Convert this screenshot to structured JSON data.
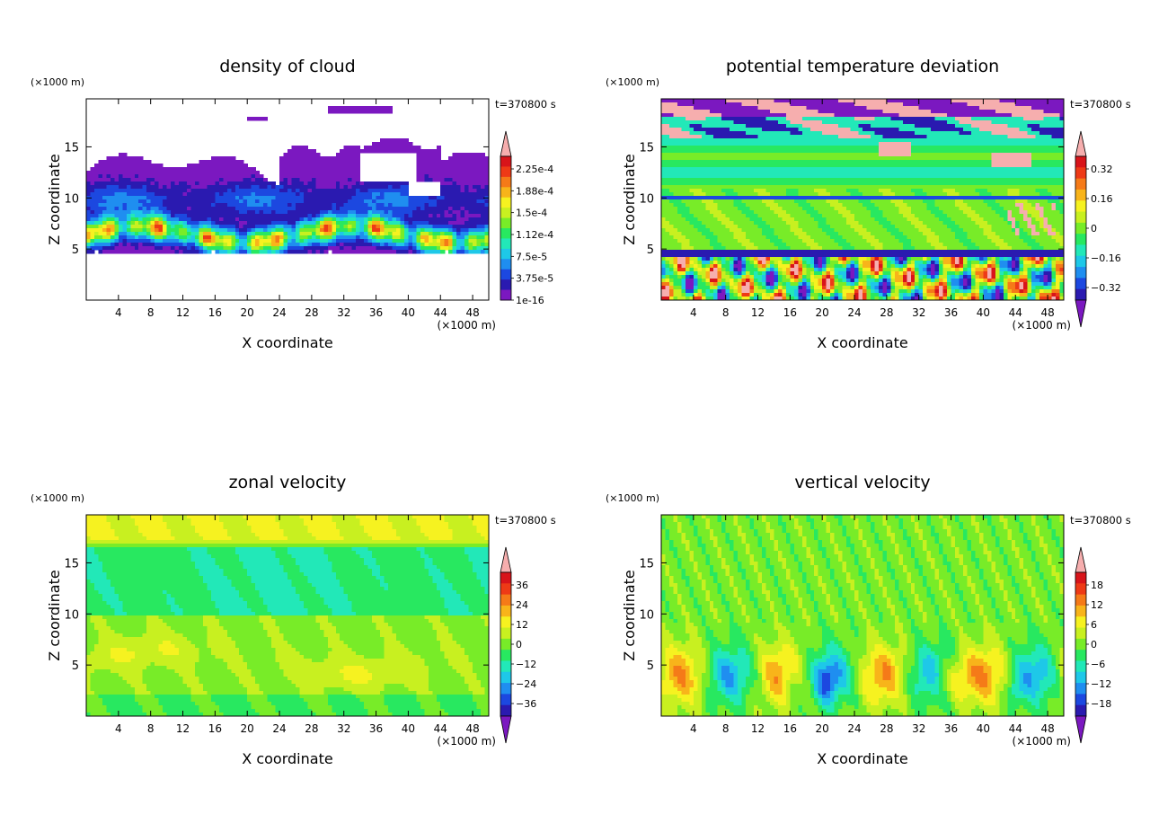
{
  "chart_data": [
    {
      "type": "heatmap",
      "title": "density of cloud",
      "xlabel": "X coordinate",
      "ylabel": "Z coordinate",
      "x_unit": "(×1000 m)",
      "y_unit": "(×1000 m)",
      "time_label": "t=370800 s",
      "xlim": [
        0,
        50
      ],
      "ylim": [
        0,
        19.7
      ],
      "xticks": [
        "4",
        "8",
        "12",
        "16",
        "20",
        "24",
        "28",
        "32",
        "36",
        "40",
        "44",
        "48"
      ],
      "yticks": [
        "5",
        "10",
        "15"
      ],
      "colorbar_labels": [
        "2.25e-4",
        "1.88e-4",
        "1.5e-4",
        "1.12e-4",
        "7.5e-5",
        "3.75e-5",
        "1e-16"
      ],
      "colorbar_has_lower_extension": false,
      "field": "cloud"
    },
    {
      "type": "heatmap",
      "title": "potential temperature deviation",
      "xlabel": "X coordinate",
      "ylabel": "Z coordinate",
      "x_unit": "(×1000 m)",
      "y_unit": "(×1000 m)",
      "time_label": "t=370800 s",
      "xlim": [
        0,
        50
      ],
      "ylim": [
        0,
        19.7
      ],
      "xticks": [
        "4",
        "8",
        "12",
        "16",
        "20",
        "24",
        "28",
        "32",
        "36",
        "40",
        "44",
        "48"
      ],
      "yticks": [
        "5",
        "10",
        "15"
      ],
      "colorbar_labels": [
        "0.32",
        "0.16",
        "0",
        "−0.16",
        "−0.32"
      ],
      "colorbar_has_lower_extension": true,
      "field": "theta"
    },
    {
      "type": "heatmap",
      "title": "zonal velocity",
      "xlabel": "X coordinate",
      "ylabel": "Z coordinate",
      "x_unit": "(×1000 m)",
      "y_unit": "(×1000 m)",
      "time_label": "t=370800 s",
      "xlim": [
        0,
        50
      ],
      "ylim": [
        0,
        19.7
      ],
      "xticks": [
        "4",
        "8",
        "12",
        "16",
        "20",
        "24",
        "28",
        "32",
        "36",
        "40",
        "44",
        "48"
      ],
      "yticks": [
        "5",
        "10",
        "15"
      ],
      "colorbar_labels": [
        "36",
        "24",
        "12",
        "0",
        "−12",
        "−24",
        "−36"
      ],
      "colorbar_has_lower_extension": true,
      "field": "uvel"
    },
    {
      "type": "heatmap",
      "title": "vertical velocity",
      "xlabel": "X coordinate",
      "ylabel": "Z coordinate",
      "x_unit": "(×1000 m)",
      "y_unit": "(×1000 m)",
      "time_label": "t=370800 s",
      "xlim": [
        0,
        50
      ],
      "ylim": [
        0,
        19.7
      ],
      "xticks": [
        "4",
        "8",
        "12",
        "16",
        "20",
        "24",
        "28",
        "32",
        "36",
        "40",
        "44",
        "48"
      ],
      "yticks": [
        "5",
        "10",
        "15"
      ],
      "colorbar_labels": [
        "18",
        "12",
        "6",
        "0",
        "−6",
        "−12",
        "−18"
      ],
      "colorbar_has_lower_extension": true,
      "field": "wvel"
    }
  ],
  "colormap": [
    "#7b18c0",
    "#2a1ab0",
    "#1c48e0",
    "#1f8ef0",
    "#1ec8e8",
    "#22e8b8",
    "#28e860",
    "#78ec28",
    "#c8f020",
    "#f6f220",
    "#f8b41a",
    "#f57a18",
    "#ee3a16",
    "#d8141a",
    "#f6aeae"
  ]
}
